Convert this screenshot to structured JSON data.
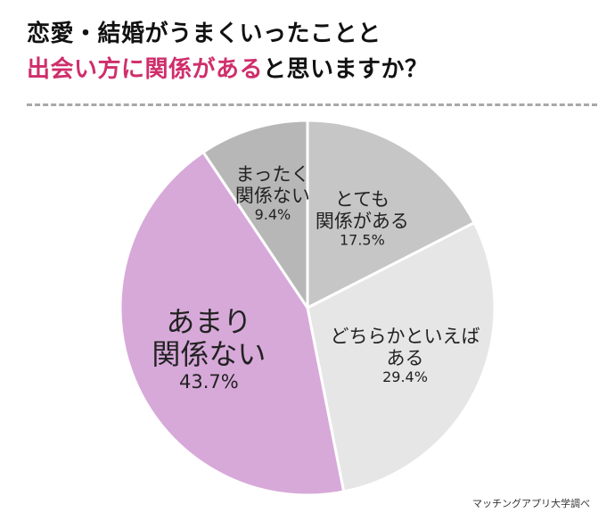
{
  "title": {
    "line1": "恋愛・結婚がうまくいったことと",
    "line2_accent": "出会い方に関係がある",
    "line2_rest": "と思いますか？"
  },
  "source": "マッチングアプリ大学調べ",
  "colors": {
    "accent": "#cf2e6b",
    "slice_very_related": "#c6c6c6",
    "slice_somewhat": "#e6e6e6",
    "slice_not_very": "#d7a9d9",
    "slice_not_at_all": "#b7b7b7",
    "border": "#ffffff",
    "text": "#222222"
  },
  "chart_data": {
    "type": "pie",
    "slices": [
      {
        "label_lines": [
          "とても",
          "関係がある"
        ],
        "value": 17.5,
        "pct_text": "17.5%",
        "color": "#c6c6c6"
      },
      {
        "label_lines": [
          "どちらかといえば",
          "ある"
        ],
        "value": 29.4,
        "pct_text": "29.4%",
        "color": "#e6e6e6"
      },
      {
        "label_lines": [
          "あまり",
          "関係ない"
        ],
        "value": 43.7,
        "pct_text": "43.7%",
        "color": "#d7a9d9"
      },
      {
        "label_lines": [
          "まったく",
          "関係ない"
        ],
        "value": 9.4,
        "pct_text": "9.4%",
        "color": "#b7b7b7"
      }
    ]
  }
}
